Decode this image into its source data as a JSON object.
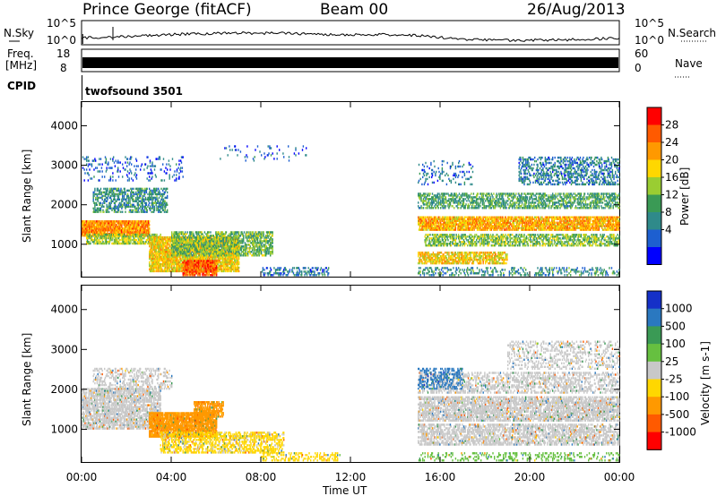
{
  "header": {
    "station": "Prince George (fitACF)",
    "beam": "Beam 00",
    "date": "26/Aug/2013"
  },
  "top_panels": {
    "nsky_label": "N.Sky",
    "nsky_ticks": [
      "10^5",
      "10^0"
    ],
    "nsearch_label": "N.Search",
    "nsearch_ticks": [
      "10^5",
      "10^0"
    ],
    "freq_label": "Freq.",
    "freq_unit": "[MHz]",
    "freq_ticks": [
      "18",
      "8"
    ],
    "nave_label": "Nave",
    "nave_ticks": [
      "60",
      "0"
    ],
    "cpid_label": "CPID",
    "cpid_value": "twofsound 3501"
  },
  "colors": {
    "power_scale": [
      "#0000ff",
      "#1d5fd0",
      "#2f8a8a",
      "#3a9a55",
      "#9acd32",
      "#ffd700",
      "#ff9900",
      "#ff5a00",
      "#ff0000"
    ],
    "velocity_scale": [
      "#1530c8",
      "#2a78c0",
      "#3a9a55",
      "#66c040",
      "#c8c8c8",
      "#ffd700",
      "#ff9900",
      "#ff5a00",
      "#ff0000"
    ]
  },
  "chart_data": [
    {
      "type": "heatmap",
      "panel": "power",
      "ylabel": "Slant Range [km]",
      "xlabel": "Time UT",
      "x_tick_labels": [
        "00:00",
        "04:00",
        "08:00",
        "12:00",
        "16:00",
        "20:00",
        "00:00"
      ],
      "x_hours": [
        0,
        4,
        8,
        12,
        16,
        20,
        24
      ],
      "y_ticks": [
        1000,
        2000,
        3000,
        4000
      ],
      "ylim": [
        180,
        4600
      ],
      "colorbar": {
        "label": "Power [dB]",
        "ticks": [
          28,
          24,
          20,
          16,
          12,
          8,
          4
        ],
        "range": [
          0,
          32
        ]
      },
      "blobs": [
        {
          "t0": 0.0,
          "t1": 3.0,
          "r0": 1200,
          "r1": 1600,
          "v": 24,
          "d": 0.85
        },
        {
          "t0": 0.2,
          "t1": 3.5,
          "r0": 1000,
          "r1": 1250,
          "v": 16,
          "d": 0.6
        },
        {
          "t0": 0.5,
          "t1": 3.8,
          "r0": 1800,
          "r1": 2400,
          "v": 10,
          "d": 0.45
        },
        {
          "t0": 0.0,
          "t1": 4.5,
          "r0": 2600,
          "r1": 3200,
          "v": 6,
          "d": 0.1
        },
        {
          "t0": 3.0,
          "t1": 7.0,
          "r0": 300,
          "r1": 1200,
          "v": 20,
          "d": 0.8
        },
        {
          "t0": 4.5,
          "t1": 6.0,
          "r0": 200,
          "r1": 600,
          "v": 27,
          "d": 0.7
        },
        {
          "t0": 4.0,
          "t1": 8.5,
          "r0": 700,
          "r1": 1300,
          "v": 14,
          "d": 0.55
        },
        {
          "t0": 8.0,
          "t1": 11.0,
          "r0": 200,
          "r1": 400,
          "v": 8,
          "d": 0.35
        },
        {
          "t0": 6.0,
          "t1": 10.0,
          "r0": 3100,
          "r1": 3500,
          "v": 6,
          "d": 0.06
        },
        {
          "t0": 15.0,
          "t1": 24.0,
          "r0": 1350,
          "r1": 1700,
          "v": 22,
          "d": 0.75
        },
        {
          "t0": 15.3,
          "t1": 24.0,
          "r0": 950,
          "r1": 1250,
          "v": 15,
          "d": 0.5
        },
        {
          "t0": 15.0,
          "t1": 19.0,
          "r0": 500,
          "r1": 800,
          "v": 20,
          "d": 0.6
        },
        {
          "t0": 15.0,
          "t1": 24.0,
          "r0": 1900,
          "r1": 2300,
          "v": 12,
          "d": 0.45
        },
        {
          "t0": 19.5,
          "t1": 24.0,
          "r0": 2500,
          "r1": 3200,
          "v": 8,
          "d": 0.35
        },
        {
          "t0": 15.0,
          "t1": 17.5,
          "r0": 2500,
          "r1": 3100,
          "v": 7,
          "d": 0.12
        },
        {
          "t0": 15.0,
          "t1": 24.0,
          "r0": 200,
          "r1": 400,
          "v": 10,
          "d": 0.25
        }
      ]
    },
    {
      "type": "heatmap",
      "panel": "velocity",
      "ylabel": "Slant Range [km]",
      "xlabel": "Time UT",
      "x_tick_labels": [
        "00:00",
        "04:00",
        "08:00",
        "12:00",
        "16:00",
        "20:00",
        "00:00"
      ],
      "x_hours": [
        0,
        4,
        8,
        12,
        16,
        20,
        24
      ],
      "y_ticks": [
        1000,
        2000,
        3000,
        4000
      ],
      "ylim": [
        180,
        4600
      ],
      "colorbar": {
        "label": "Velocity [m s-1]",
        "ticks": [
          1000,
          500,
          100,
          25,
          -25,
          -100,
          -500,
          -1000
        ],
        "range": [
          -1200,
          1200
        ]
      },
      "blobs": [
        {
          "t0": 0.0,
          "t1": 3.5,
          "r0": 1000,
          "r1": 2000,
          "v": 0,
          "d": 0.6
        },
        {
          "t0": 0.5,
          "t1": 4.0,
          "r0": 2000,
          "r1": 2500,
          "v": 0,
          "d": 0.3
        },
        {
          "t0": 3.0,
          "t1": 6.0,
          "r0": 800,
          "r1": 1400,
          "v": -300,
          "d": 0.85
        },
        {
          "t0": 5.0,
          "t1": 6.3,
          "r0": 1300,
          "r1": 1700,
          "v": -250,
          "d": 0.7
        },
        {
          "t0": 3.5,
          "t1": 9.0,
          "r0": 400,
          "r1": 900,
          "v": -40,
          "d": 0.45
        },
        {
          "t0": 8.0,
          "t1": 11.5,
          "r0": 200,
          "r1": 400,
          "v": -60,
          "d": 0.3
        },
        {
          "t0": 15.0,
          "t1": 24.0,
          "r0": 1200,
          "r1": 1800,
          "v": 0,
          "d": 0.6
        },
        {
          "t0": 15.0,
          "t1": 24.0,
          "r0": 600,
          "r1": 1100,
          "v": 0,
          "d": 0.5
        },
        {
          "t0": 15.0,
          "t1": 24.0,
          "r0": 1900,
          "r1": 2400,
          "v": 0,
          "d": 0.35
        },
        {
          "t0": 15.0,
          "t1": 17.0,
          "r0": 2000,
          "r1": 2500,
          "v": 700,
          "d": 0.3
        },
        {
          "t0": 19.0,
          "t1": 24.0,
          "r0": 2500,
          "r1": 3200,
          "v": 0,
          "d": 0.25
        },
        {
          "t0": 15.0,
          "t1": 24.0,
          "r0": 200,
          "r1": 400,
          "v": 60,
          "d": 0.2
        }
      ]
    }
  ]
}
